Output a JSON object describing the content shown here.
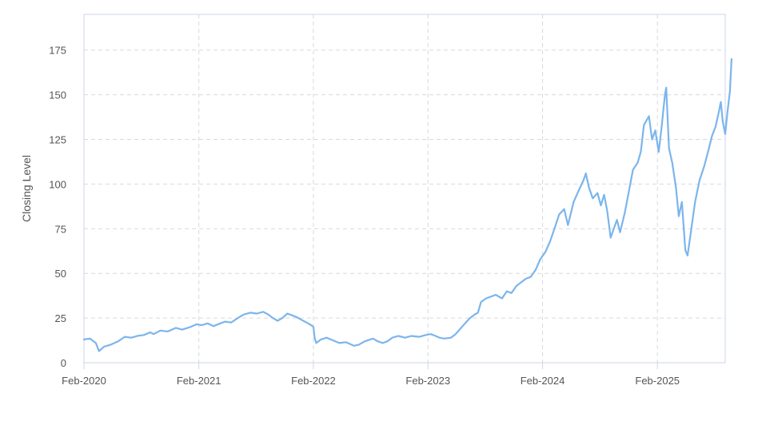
{
  "chart_data": {
    "type": "line",
    "title": "",
    "xlabel": "",
    "ylabel": "Closing Level",
    "ylim": [
      0,
      195
    ],
    "xlim": [
      "2020-02-01",
      "2025-09-05"
    ],
    "y_ticks": [
      0,
      25,
      50,
      75,
      100,
      125,
      150,
      175
    ],
    "x_ticks": [
      {
        "date": "2020-02-01",
        "label": "Feb-2020"
      },
      {
        "date": "2021-02-01",
        "label": "Feb-2021"
      },
      {
        "date": "2022-02-01",
        "label": "Feb-2022"
      },
      {
        "date": "2023-02-01",
        "label": "Feb-2023"
      },
      {
        "date": "2024-02-01",
        "label": "Feb-2024"
      },
      {
        "date": "2025-02-01",
        "label": "Feb-2025"
      }
    ],
    "grid": true,
    "legend": "none",
    "colors": {
      "line": "#7cb5ec",
      "grid": "#d9d9d9",
      "frame": "#ccd6eb"
    },
    "series": [
      {
        "points": [
          [
            "2020-02-01",
            13
          ],
          [
            "2020-02-20",
            13.5
          ],
          [
            "2020-03-10",
            11
          ],
          [
            "2020-03-20",
            6.5
          ],
          [
            "2020-04-05",
            9
          ],
          [
            "2020-04-25",
            10
          ],
          [
            "2020-05-20",
            12
          ],
          [
            "2020-06-10",
            14.5
          ],
          [
            "2020-07-01",
            14
          ],
          [
            "2020-07-20",
            15
          ],
          [
            "2020-08-10",
            15.5
          ],
          [
            "2020-08-30",
            17
          ],
          [
            "2020-09-10",
            16
          ],
          [
            "2020-10-01",
            18
          ],
          [
            "2020-10-25",
            17.5
          ],
          [
            "2020-11-20",
            19.5
          ],
          [
            "2020-12-10",
            18.5
          ],
          [
            "2021-01-05",
            20
          ],
          [
            "2021-01-25",
            21.5
          ],
          [
            "2021-02-10",
            21
          ],
          [
            "2021-03-01",
            22
          ],
          [
            "2021-03-20",
            20.5
          ],
          [
            "2021-04-10",
            22
          ],
          [
            "2021-04-25",
            23
          ],
          [
            "2021-05-15",
            22.5
          ],
          [
            "2021-06-05",
            25
          ],
          [
            "2021-06-25",
            27
          ],
          [
            "2021-07-15",
            28
          ],
          [
            "2021-08-05",
            27.5
          ],
          [
            "2021-08-25",
            28.5
          ],
          [
            "2021-09-10",
            27
          ],
          [
            "2021-09-25",
            25
          ],
          [
            "2021-10-10",
            23.5
          ],
          [
            "2021-10-25",
            25
          ],
          [
            "2021-11-10",
            27.5
          ],
          [
            "2021-11-25",
            26.5
          ],
          [
            "2021-12-10",
            25.5
          ],
          [
            "2021-12-25",
            24
          ],
          [
            "2022-01-10",
            22.5
          ],
          [
            "2022-01-25",
            21
          ],
          [
            "2022-02-01",
            20
          ],
          [
            "2022-02-05",
            14
          ],
          [
            "2022-02-10",
            11
          ],
          [
            "2022-02-25",
            13
          ],
          [
            "2022-03-15",
            14
          ],
          [
            "2022-04-05",
            12.5
          ],
          [
            "2022-04-25",
            11
          ],
          [
            "2022-05-15",
            11.5
          ],
          [
            "2022-06-10",
            9.5
          ],
          [
            "2022-06-25",
            10
          ],
          [
            "2022-07-15",
            12
          ],
          [
            "2022-08-10",
            13.5
          ],
          [
            "2022-08-25",
            12
          ],
          [
            "2022-09-10",
            11
          ],
          [
            "2022-09-25",
            12
          ],
          [
            "2022-10-10",
            14
          ],
          [
            "2022-10-30",
            15
          ],
          [
            "2022-11-20",
            14
          ],
          [
            "2022-12-10",
            15
          ],
          [
            "2023-01-05",
            14.5
          ],
          [
            "2023-01-25",
            15.5
          ],
          [
            "2023-02-10",
            16
          ],
          [
            "2023-02-25",
            15
          ],
          [
            "2023-03-10",
            14
          ],
          [
            "2023-03-25",
            13.5
          ],
          [
            "2023-04-15",
            14
          ],
          [
            "2023-04-30",
            16
          ],
          [
            "2023-05-15",
            19
          ],
          [
            "2023-05-30",
            22
          ],
          [
            "2023-06-15",
            25
          ],
          [
            "2023-06-30",
            27
          ],
          [
            "2023-07-10",
            28
          ],
          [
            "2023-07-20",
            34
          ],
          [
            "2023-08-05",
            36
          ],
          [
            "2023-08-20",
            37
          ],
          [
            "2023-09-05",
            38
          ],
          [
            "2023-09-25",
            36
          ],
          [
            "2023-10-10",
            40
          ],
          [
            "2023-10-25",
            39
          ],
          [
            "2023-11-10",
            43
          ],
          [
            "2023-11-25",
            45
          ],
          [
            "2023-12-10",
            47
          ],
          [
            "2023-12-25",
            48
          ],
          [
            "2024-01-10",
            52
          ],
          [
            "2024-01-25",
            58
          ],
          [
            "2024-02-10",
            62
          ],
          [
            "2024-02-25",
            68
          ],
          [
            "2024-03-10",
            75
          ],
          [
            "2024-03-25",
            83
          ],
          [
            "2024-04-10",
            86
          ],
          [
            "2024-04-22",
            77
          ],
          [
            "2024-05-10",
            90
          ],
          [
            "2024-05-25",
            96
          ],
          [
            "2024-06-10",
            102
          ],
          [
            "2024-06-18",
            106
          ],
          [
            "2024-06-28",
            98
          ],
          [
            "2024-07-10",
            92
          ],
          [
            "2024-07-25",
            95
          ],
          [
            "2024-08-05",
            88
          ],
          [
            "2024-08-15",
            94
          ],
          [
            "2024-08-25",
            85
          ],
          [
            "2024-09-05",
            70
          ],
          [
            "2024-09-15",
            75
          ],
          [
            "2024-09-25",
            80
          ],
          [
            "2024-10-05",
            73
          ],
          [
            "2024-10-20",
            84
          ],
          [
            "2024-11-01",
            95
          ],
          [
            "2024-11-15",
            108
          ],
          [
            "2024-11-30",
            112
          ],
          [
            "2024-12-10",
            118
          ],
          [
            "2024-12-20",
            133
          ],
          [
            "2025-01-05",
            138
          ],
          [
            "2025-01-15",
            125
          ],
          [
            "2025-01-25",
            130
          ],
          [
            "2025-02-05",
            118
          ],
          [
            "2025-02-15",
            133
          ],
          [
            "2025-02-25",
            150
          ],
          [
            "2025-03-01",
            154
          ],
          [
            "2025-03-10",
            120
          ],
          [
            "2025-03-20",
            112
          ],
          [
            "2025-04-01",
            98
          ],
          [
            "2025-04-10",
            82
          ],
          [
            "2025-04-20",
            90
          ],
          [
            "2025-05-01",
            63
          ],
          [
            "2025-05-08",
            60
          ],
          [
            "2025-05-20",
            75
          ],
          [
            "2025-06-01",
            90
          ],
          [
            "2025-06-15",
            102
          ],
          [
            "2025-06-30",
            110
          ],
          [
            "2025-07-15",
            120
          ],
          [
            "2025-07-25",
            127
          ],
          [
            "2025-08-05",
            132
          ],
          [
            "2025-08-15",
            140
          ],
          [
            "2025-08-22",
            146
          ],
          [
            "2025-08-28",
            135
          ],
          [
            "2025-09-05",
            128
          ],
          [
            "2025-09-12",
            140
          ],
          [
            "2025-09-20",
            152
          ],
          [
            "2025-09-25",
            170
          ]
        ]
      }
    ]
  }
}
